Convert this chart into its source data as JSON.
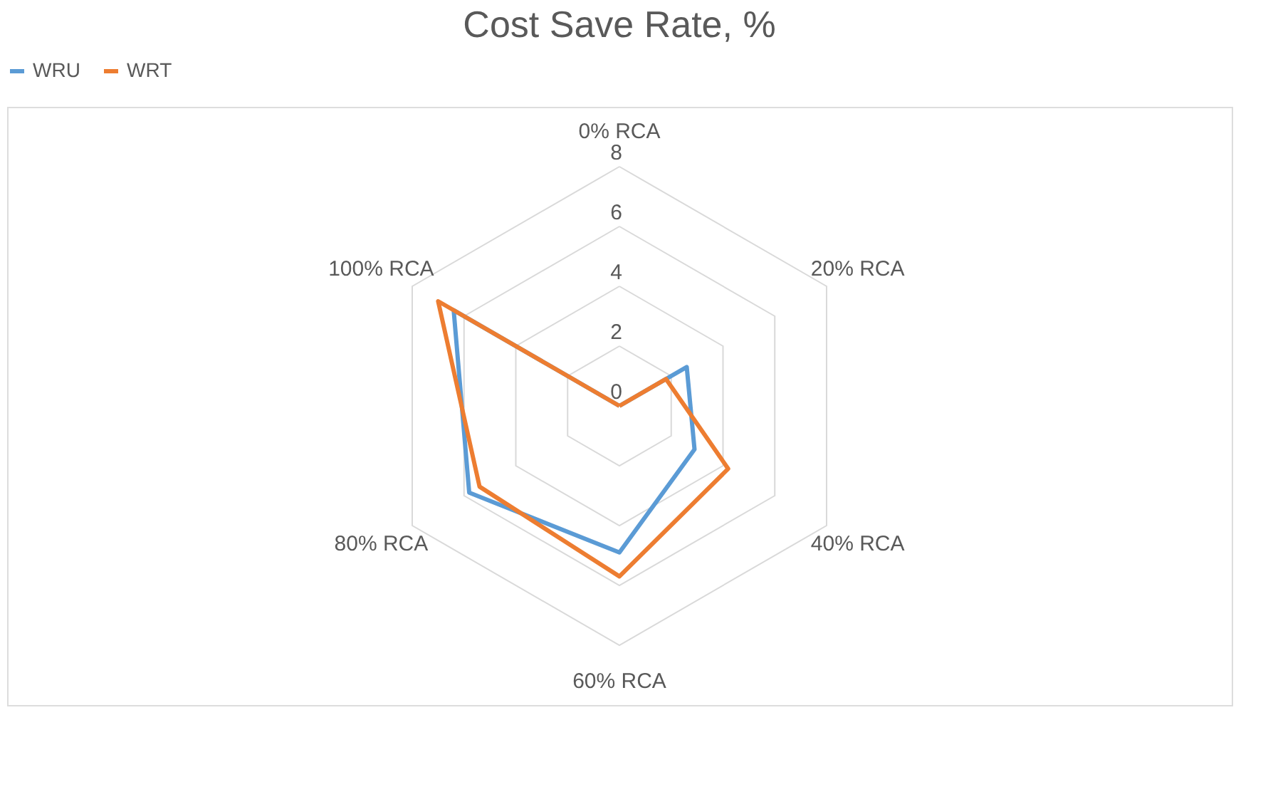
{
  "chart_data": {
    "type": "radar",
    "title": "Cost Save Rate, %",
    "categories": [
      "0% RCA",
      "20% RCA",
      "40% RCA",
      "60% RCA",
      "80% RCA",
      "100% RCA"
    ],
    "series": [
      {
        "name": "WRU",
        "color": "#5b9bd5",
        "values": [
          0,
          2.6,
          2.9,
          4.9,
          5.8,
          6.4
        ]
      },
      {
        "name": "WRT",
        "color": "#ed7d31",
        "values": [
          0,
          1.8,
          4.2,
          5.7,
          5.4,
          7.0
        ]
      }
    ],
    "ylim": [
      0,
      8
    ],
    "yticks": [
      0,
      2,
      4,
      6,
      8
    ],
    "grid": true,
    "legend": "top"
  }
}
